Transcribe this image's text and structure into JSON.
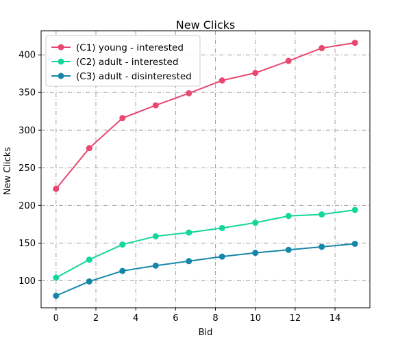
{
  "chart_data": {
    "type": "line",
    "title": "New Clicks",
    "xlabel": "Bid",
    "ylabel": "New Clicks",
    "xlim": [
      -0.75,
      15.75
    ],
    "ylim": [
      64,
      432
    ],
    "xticks": [
      0,
      2,
      4,
      6,
      8,
      10,
      12,
      14
    ],
    "yticks": [
      100,
      150,
      200,
      250,
      300,
      350,
      400
    ],
    "grid": true,
    "legend_position": "top-left",
    "x": [
      0,
      1.667,
      3.333,
      5,
      6.667,
      8.333,
      10,
      11.667,
      13.333,
      15
    ],
    "series": [
      {
        "name": "(C1) young - interested",
        "color": "#e8476f",
        "values": [
          222,
          276,
          316,
          333,
          349,
          366,
          376,
          392,
          409,
          416
        ]
      },
      {
        "name": "(C2) adult - interested",
        "color": "#13d69a",
        "values": [
          104,
          128,
          148,
          159,
          164,
          170,
          177,
          186,
          188,
          194
        ]
      },
      {
        "name": "(C3) adult - disinterested",
        "color": "#1586a8",
        "values": [
          80,
          99,
          113,
          120,
          126,
          132,
          137,
          141,
          145,
          149
        ]
      }
    ]
  }
}
